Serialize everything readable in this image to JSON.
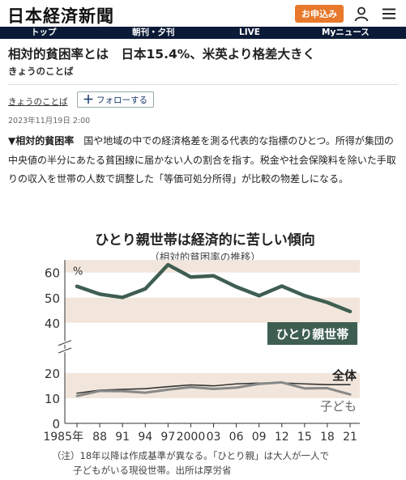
{
  "site": {
    "logo": "日本経済新聞",
    "apply_label": "お申込み"
  },
  "nav": {
    "items": [
      "トップ",
      "朝刊・夕刊",
      "LIVE",
      "Myニュース"
    ]
  },
  "article": {
    "headline": "相対的貧困率とは　日本15.4%、米英より格差大きく",
    "series": "きょうのことば",
    "category": "きょうのことば",
    "follow_label": "フォローする",
    "date": "2023年11月19日 2:00",
    "body_term": "▼相対的貧困率",
    "body_text": "　国や地域の中での経済格差を測る代表的な指標のひとつ。所得が集団の中央値の半分にあたる貧困線に届かない人の割合を指す。税金や社会保険料を除いた手取りの収入を世帯の人数で調整した「等価可処分所得」が比較の物差しになる。"
  },
  "chart_data": {
    "type": "line",
    "title": "ひとり親世帯は経済的に苦しい傾向",
    "subtitle": "（相対的貧困率の推移）",
    "y_unit": "%",
    "ylim": [
      0,
      65
    ],
    "yticks": [
      0,
      10,
      20,
      40,
      50,
      60
    ],
    "x_labels": [
      "1985年",
      "88",
      "91",
      "94",
      "97",
      "2000",
      "03",
      "06",
      "09",
      "12",
      "15",
      "18",
      "21"
    ],
    "x": [
      1985,
      1988,
      1991,
      1994,
      1997,
      2000,
      2003,
      2006,
      2009,
      2012,
      2015,
      2018,
      2021
    ],
    "series": [
      {
        "name": "ひとり親世帯",
        "color": "#3f5e52",
        "values": [
          54.5,
          51.4,
          50.1,
          53.5,
          63.1,
          58.2,
          58.7,
          54.3,
          50.8,
          54.6,
          50.8,
          48.1,
          44.5
        ]
      },
      {
        "name": "全体",
        "color": "#333333",
        "values": [
          12.0,
          13.2,
          13.5,
          13.8,
          14.6,
          15.3,
          14.9,
          15.7,
          16.0,
          16.1,
          15.7,
          15.4,
          15.4
        ]
      },
      {
        "name": "子ども",
        "color": "#888888",
        "values": [
          10.9,
          12.9,
          12.8,
          12.2,
          13.4,
          14.4,
          13.7,
          14.2,
          15.7,
          16.3,
          13.9,
          14.0,
          11.5
        ]
      }
    ],
    "note": "（注）18年以降は作成基準が異なる。「ひとり親」は大人が一人で子どもがいる現役世帯。出所は厚労省",
    "colors": {
      "band": "#f2e6dc",
      "axis": "#333333",
      "label_box": "#3f5e52"
    }
  }
}
